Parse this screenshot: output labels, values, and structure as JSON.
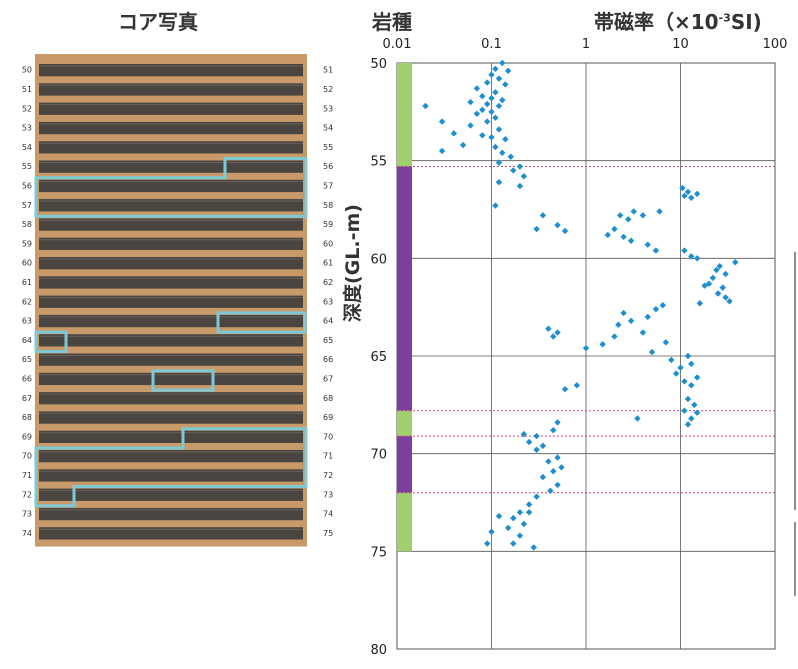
{
  "titles": {
    "core_photo": "コア写真",
    "rock_type": "岩種",
    "susceptibility_main": "帯磁率（×10",
    "susceptibility_exp": "-3",
    "susceptibility_unit": "SI)"
  },
  "core_photo": {
    "left_labels": [
      "50",
      "51",
      "52",
      "53",
      "54",
      "55",
      "56",
      "57",
      "58",
      "59",
      "60",
      "61",
      "62",
      "63",
      "64",
      "65",
      "66",
      "67",
      "68",
      "69",
      "70",
      "71",
      "72",
      "73",
      "74"
    ],
    "right_labels": [
      "51",
      "52",
      "53",
      "54",
      "55",
      "56",
      "57",
      "58",
      "59",
      "60",
      "61",
      "62",
      "63",
      "64",
      "65",
      "66",
      "67",
      "68",
      "69",
      "70",
      "71",
      "72",
      "73",
      "74",
      "75"
    ],
    "highlight_color": "#7dc9d6",
    "wood_color": "#c89a6a",
    "core_color": "#4a4540"
  },
  "colors": {
    "rock_green": "#9fd06e",
    "rock_purple": "#7b3fa0",
    "marker": "#1d8fd0",
    "boundary": "#d04080",
    "grid": "#555555"
  },
  "chart_data": {
    "type": "scatter",
    "title": "帯磁率（×10⁻³SI)",
    "ylabel": "深度(GL.-m)",
    "xlabel": "",
    "x_scale": "log",
    "xlim": [
      0.01,
      100
    ],
    "ylim": [
      50,
      80
    ],
    "y_inverted": true,
    "x_ticks": [
      "0.01",
      "0.1",
      "1",
      "10",
      "100"
    ],
    "y_ticks": [
      "50",
      "55",
      "60",
      "65",
      "70",
      "75",
      "80"
    ],
    "grid": true,
    "rock_intervals": [
      {
        "from": 50.0,
        "to": 55.3,
        "rock": "green"
      },
      {
        "from": 55.3,
        "to": 67.8,
        "rock": "purple"
      },
      {
        "from": 67.8,
        "to": 69.1,
        "rock": "green"
      },
      {
        "from": 69.1,
        "to": 72.0,
        "rock": "purple"
      },
      {
        "from": 72.0,
        "to": 75.0,
        "rock": "green"
      }
    ],
    "boundaries": [
      55.3,
      67.8,
      69.1,
      72.0
    ],
    "points": [
      [
        0.13,
        50.0
      ],
      [
        0.11,
        50.3
      ],
      [
        0.15,
        50.4
      ],
      [
        0.1,
        50.6
      ],
      [
        0.12,
        50.8
      ],
      [
        0.09,
        51.0
      ],
      [
        0.14,
        51.1
      ],
      [
        0.07,
        51.3
      ],
      [
        0.11,
        51.5
      ],
      [
        0.08,
        51.7
      ],
      [
        0.1,
        51.8
      ],
      [
        0.13,
        51.9
      ],
      [
        0.06,
        52.0
      ],
      [
        0.09,
        52.1
      ],
      [
        0.12,
        52.2
      ],
      [
        0.02,
        52.2
      ],
      [
        0.08,
        52.4
      ],
      [
        0.1,
        52.5
      ],
      [
        0.07,
        52.6
      ],
      [
        0.11,
        52.8
      ],
      [
        0.03,
        53.0
      ],
      [
        0.09,
        53.0
      ],
      [
        0.06,
        53.2
      ],
      [
        0.12,
        53.4
      ],
      [
        0.04,
        53.6
      ],
      [
        0.08,
        53.7
      ],
      [
        0.1,
        53.8
      ],
      [
        0.14,
        53.9
      ],
      [
        0.05,
        54.2
      ],
      [
        0.11,
        54.3
      ],
      [
        0.03,
        54.5
      ],
      [
        0.13,
        54.6
      ],
      [
        0.16,
        54.8
      ],
      [
        0.12,
        55.1
      ],
      [
        0.2,
        55.3
      ],
      [
        0.17,
        55.5
      ],
      [
        0.22,
        55.8
      ],
      [
        0.12,
        56.1
      ],
      [
        0.2,
        56.3
      ],
      [
        0.11,
        57.3
      ],
      [
        0.35,
        57.8
      ],
      [
        0.3,
        58.5
      ],
      [
        0.5,
        58.3
      ],
      [
        0.6,
        58.6
      ],
      [
        1.7,
        58.8
      ],
      [
        2.0,
        58.5
      ],
      [
        2.3,
        57.8
      ],
      [
        2.8,
        58.0
      ],
      [
        3.2,
        57.6
      ],
      [
        4.0,
        57.8
      ],
      [
        6.0,
        57.6
      ],
      [
        2.5,
        58.9
      ],
      [
        3.0,
        59.1
      ],
      [
        4.5,
        59.3
      ],
      [
        5.5,
        59.6
      ],
      [
        10.5,
        56.4
      ],
      [
        12.0,
        56.6
      ],
      [
        11.0,
        56.8
      ],
      [
        13.0,
        56.9
      ],
      [
        15.0,
        56.7
      ],
      [
        11.0,
        59.6
      ],
      [
        13.0,
        59.9
      ],
      [
        15.0,
        60.0
      ],
      [
        38.0,
        60.2
      ],
      [
        26.0,
        60.4
      ],
      [
        24.0,
        60.6
      ],
      [
        30.0,
        60.8
      ],
      [
        22.0,
        61.0
      ],
      [
        20.0,
        61.3
      ],
      [
        28.0,
        61.5
      ],
      [
        18.0,
        61.4
      ],
      [
        25.0,
        61.8
      ],
      [
        30.0,
        62.0
      ],
      [
        33.0,
        62.2
      ],
      [
        16.0,
        62.3
      ],
      [
        6.5,
        62.4
      ],
      [
        5.5,
        62.6
      ],
      [
        2.5,
        62.8
      ],
      [
        3.0,
        63.2
      ],
      [
        2.2,
        63.4
      ],
      [
        4.5,
        63.0
      ],
      [
        4.0,
        63.8
      ],
      [
        2.0,
        64.0
      ],
      [
        0.4,
        63.6
      ],
      [
        0.5,
        63.8
      ],
      [
        0.45,
        64.0
      ],
      [
        1.0,
        64.6
      ],
      [
        1.5,
        64.4
      ],
      [
        7.0,
        64.3
      ],
      [
        5.0,
        64.8
      ],
      [
        8.0,
        65.2
      ],
      [
        12.0,
        65.0
      ],
      [
        13.0,
        65.4
      ],
      [
        10.0,
        65.6
      ],
      [
        9.0,
        65.9
      ],
      [
        15.0,
        66.1
      ],
      [
        11.0,
        66.3
      ],
      [
        13.0,
        66.5
      ],
      [
        0.8,
        66.5
      ],
      [
        0.6,
        66.7
      ],
      [
        12.0,
        67.2
      ],
      [
        14.0,
        67.5
      ],
      [
        11.0,
        67.8
      ],
      [
        15.0,
        67.9
      ],
      [
        13.0,
        68.2
      ],
      [
        12.0,
        68.5
      ],
      [
        3.5,
        68.2
      ],
      [
        0.5,
        68.4
      ],
      [
        0.45,
        68.8
      ],
      [
        0.3,
        69.1
      ],
      [
        0.22,
        69.0
      ],
      [
        0.25,
        69.4
      ],
      [
        0.35,
        69.6
      ],
      [
        0.3,
        69.8
      ],
      [
        0.5,
        70.2
      ],
      [
        0.4,
        70.4
      ],
      [
        0.55,
        70.7
      ],
      [
        0.45,
        70.9
      ],
      [
        0.35,
        71.2
      ],
      [
        0.5,
        71.6
      ],
      [
        0.42,
        71.9
      ],
      [
        0.3,
        72.2
      ],
      [
        0.25,
        72.6
      ],
      [
        0.2,
        73.0
      ],
      [
        0.17,
        73.3
      ],
      [
        0.22,
        73.6
      ],
      [
        0.15,
        73.8
      ],
      [
        0.1,
        74.0
      ],
      [
        0.2,
        74.2
      ],
      [
        0.17,
        74.6
      ],
      [
        0.09,
        74.6
      ],
      [
        0.28,
        74.8
      ],
      [
        0.12,
        73.2
      ],
      [
        0.25,
        73.0
      ]
    ]
  }
}
